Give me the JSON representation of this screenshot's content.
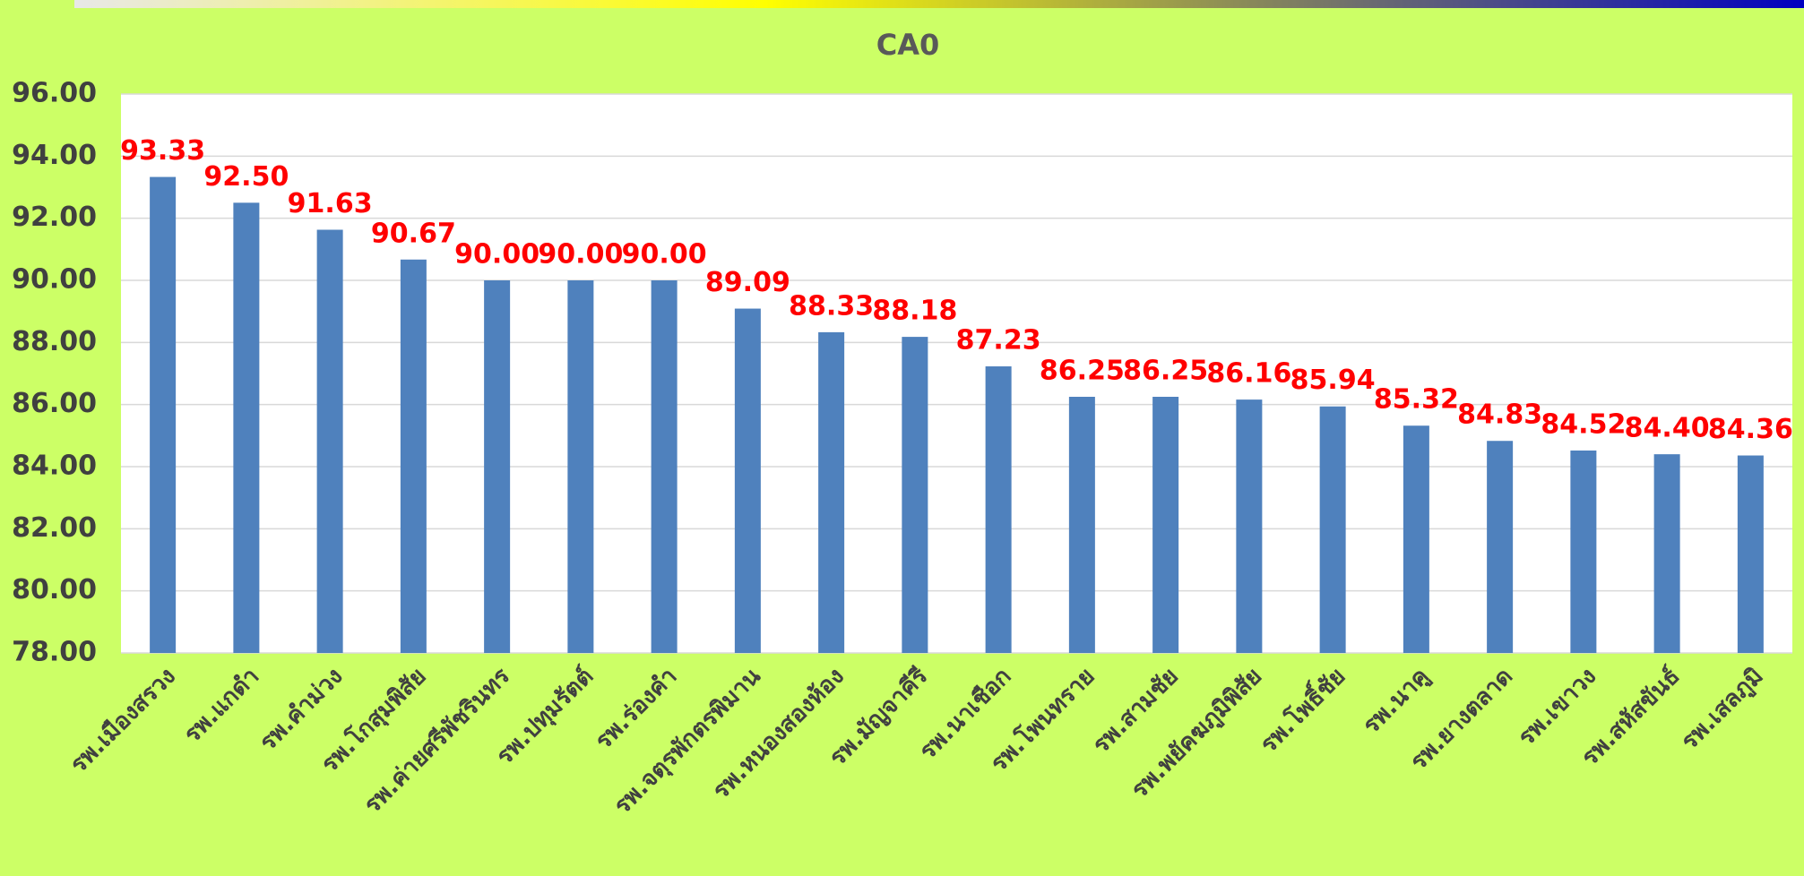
{
  "chart_data": {
    "type": "bar",
    "title": "CA0",
    "categories": [
      "รพ.เมืองสรวง",
      "รพ.แกดำ",
      "รพ.คำม่วง",
      "รพ.โกสุมพิสัย",
      "รพ.ค่ายศรีพัชรินทร",
      "รพ.ปทุมรัตต์",
      "รพ.ร่องคำ",
      "รพ.จตุรพักตรพิมาน",
      "รพ.หนองสองห้อง",
      "รพ.มัญจาคีรี",
      "รพ.นาเชือก",
      "รพ.โพนทราย",
      "รพ.สามชัย",
      "รพ.พยัคฆภูมิพิสัย",
      "รพ.โพธิ์ชัย",
      "รพ.นาคู",
      "รพ.ยางตลาด",
      "รพ.เขาวง",
      "รพ.สหัสขันธ์",
      "รพ.เสลภูมิ"
    ],
    "values": [
      93.33,
      92.5,
      91.63,
      90.67,
      90,
      90,
      90,
      89.09,
      88.33,
      88.18,
      87.23,
      86.25,
      86.25,
      86.16,
      85.94,
      85.32,
      84.83,
      84.52,
      84.4,
      84.36
    ],
    "value_labels": [
      "93.33",
      "92.50",
      "91.63",
      "90.67",
      "90.00",
      "90.00",
      "90.00",
      "89.09",
      "88.33",
      "88.18",
      "87.23",
      "86.25",
      "86.25",
      "86.16",
      "85.94",
      "85.32",
      "84.83",
      "84.52",
      "84.40",
      "84.36"
    ],
    "color": "#4f81bd",
    "label_color": "#ff0000",
    "ylim": [
      78,
      96
    ],
    "yticks": [
      {
        "value": 78,
        "label": "78.00"
      },
      {
        "value": 80,
        "label": "80.00"
      },
      {
        "value": 82,
        "label": "82.00"
      },
      {
        "value": 84,
        "label": "84.00"
      },
      {
        "value": 86,
        "label": "86.00"
      },
      {
        "value": 88,
        "label": "88.00"
      },
      {
        "value": 90,
        "label": "90.00"
      },
      {
        "value": 92,
        "label": "92.00"
      },
      {
        "value": 94,
        "label": "94.00"
      },
      {
        "value": 96,
        "label": "96.00"
      }
    ],
    "grid": true
  }
}
